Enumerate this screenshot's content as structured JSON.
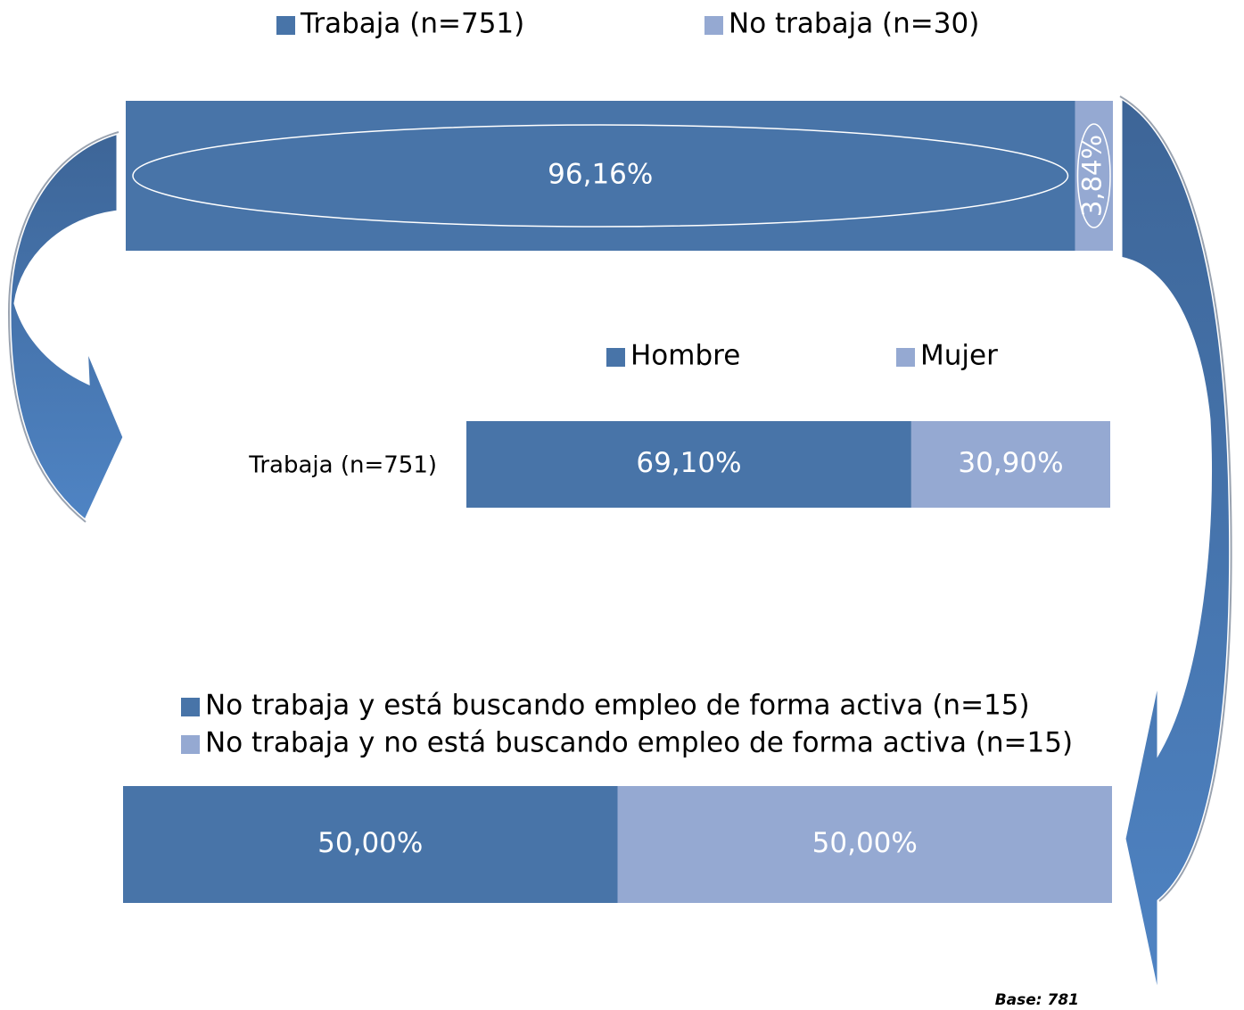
{
  "chart_data": [
    {
      "type": "stacked-bar",
      "categories": [
        null
      ],
      "series": [
        {
          "name": "Trabaja (n=751)",
          "color": "#4874a8",
          "values": [
            96.16
          ],
          "value_labels": [
            "96,16%"
          ]
        },
        {
          "name": "No trabaja (n=30)",
          "color": "#95a9d2",
          "values": [
            3.84
          ],
          "value_labels": [
            "3,84%"
          ]
        }
      ]
    },
    {
      "type": "stacked-bar",
      "categories": [
        "Trabaja (n=751)"
      ],
      "series": [
        {
          "name": "Hombre",
          "color": "#4874a8",
          "values": [
            69.1
          ],
          "value_labels": [
            "69,10%"
          ]
        },
        {
          "name": "Mujer",
          "color": "#95a9d2",
          "values": [
            30.9
          ],
          "value_labels": [
            "30,90%"
          ]
        }
      ]
    },
    {
      "type": "stacked-bar",
      "categories": [
        null
      ],
      "series": [
        {
          "name": "No trabaja y está buscando empleo de forma activa (n=15)",
          "color": "#4874a8",
          "values": [
            50
          ],
          "value_labels": [
            "50,00%"
          ]
        },
        {
          "name": "No trabaja y no está buscando empleo de forma activa (n=15)",
          "color": "#95a9d2",
          "values": [
            50
          ],
          "value_labels": [
            "50,00%"
          ]
        }
      ]
    }
  ],
  "footnote": "Base: 781"
}
